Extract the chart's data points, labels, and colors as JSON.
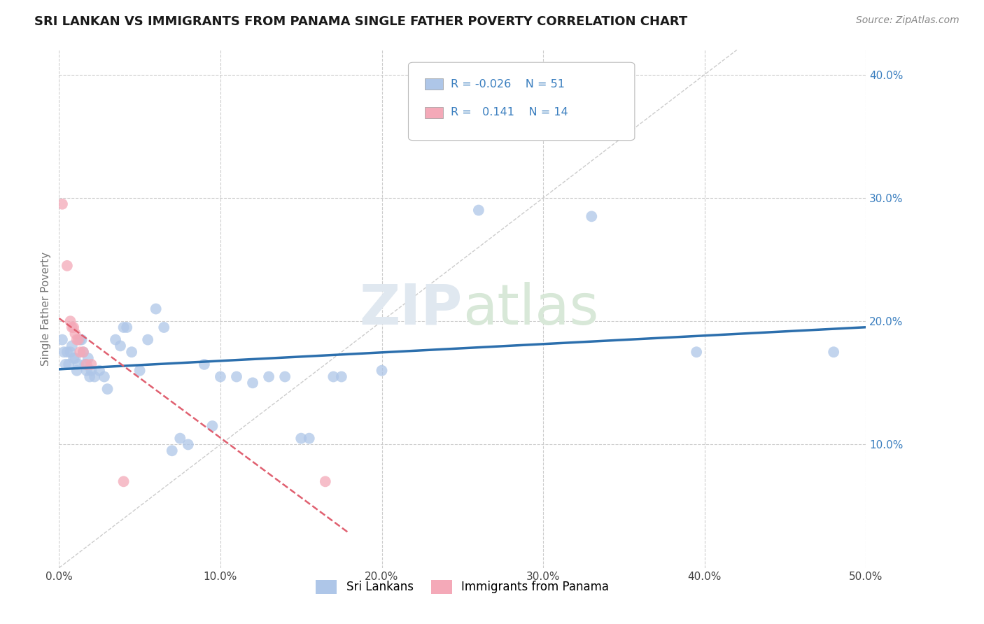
{
  "title": "SRI LANKAN VS IMMIGRANTS FROM PANAMA SINGLE FATHER POVERTY CORRELATION CHART",
  "source": "Source: ZipAtlas.com",
  "ylabel": "Single Father Poverty",
  "watermark": "ZIPatlas",
  "xmin": 0.0,
  "xmax": 0.5,
  "ymin": 0.0,
  "ymax": 0.42,
  "xticks": [
    0.0,
    0.1,
    0.2,
    0.3,
    0.4,
    0.5
  ],
  "xtick_labels": [
    "0.0%",
    "10.0%",
    "20.0%",
    "30.0%",
    "40.0%",
    "50.0%"
  ],
  "yticks": [
    0.1,
    0.2,
    0.3,
    0.4
  ],
  "ytick_labels": [
    "10.0%",
    "20.0%",
    "30.0%",
    "40.0%"
  ],
  "sri_lanka_color": "#aec6e8",
  "panama_color": "#f4a9b8",
  "trend_sri_lanka_color": "#2c6fad",
  "trend_panama_color": "#e06070",
  "diagonal_color": "#cccccc",
  "sri_lanka_points": [
    [
      0.002,
      0.185
    ],
    [
      0.003,
      0.175
    ],
    [
      0.004,
      0.165
    ],
    [
      0.005,
      0.175
    ],
    [
      0.006,
      0.165
    ],
    [
      0.007,
      0.175
    ],
    [
      0.008,
      0.18
    ],
    [
      0.009,
      0.17
    ],
    [
      0.01,
      0.17
    ],
    [
      0.011,
      0.16
    ],
    [
      0.012,
      0.165
    ],
    [
      0.013,
      0.185
    ],
    [
      0.014,
      0.185
    ],
    [
      0.015,
      0.175
    ],
    [
      0.016,
      0.165
    ],
    [
      0.017,
      0.16
    ],
    [
      0.018,
      0.17
    ],
    [
      0.019,
      0.155
    ],
    [
      0.02,
      0.16
    ],
    [
      0.022,
      0.155
    ],
    [
      0.025,
      0.16
    ],
    [
      0.028,
      0.155
    ],
    [
      0.03,
      0.145
    ],
    [
      0.035,
      0.185
    ],
    [
      0.038,
      0.18
    ],
    [
      0.04,
      0.195
    ],
    [
      0.042,
      0.195
    ],
    [
      0.045,
      0.175
    ],
    [
      0.05,
      0.16
    ],
    [
      0.055,
      0.185
    ],
    [
      0.06,
      0.21
    ],
    [
      0.065,
      0.195
    ],
    [
      0.07,
      0.095
    ],
    [
      0.075,
      0.105
    ],
    [
      0.08,
      0.1
    ],
    [
      0.09,
      0.165
    ],
    [
      0.095,
      0.115
    ],
    [
      0.1,
      0.155
    ],
    [
      0.11,
      0.155
    ],
    [
      0.12,
      0.15
    ],
    [
      0.13,
      0.155
    ],
    [
      0.14,
      0.155
    ],
    [
      0.15,
      0.105
    ],
    [
      0.155,
      0.105
    ],
    [
      0.17,
      0.155
    ],
    [
      0.175,
      0.155
    ],
    [
      0.2,
      0.16
    ],
    [
      0.26,
      0.29
    ],
    [
      0.33,
      0.285
    ],
    [
      0.395,
      0.175
    ],
    [
      0.48,
      0.175
    ]
  ],
  "panama_points": [
    [
      0.002,
      0.295
    ],
    [
      0.005,
      0.245
    ],
    [
      0.007,
      0.2
    ],
    [
      0.008,
      0.195
    ],
    [
      0.009,
      0.195
    ],
    [
      0.01,
      0.19
    ],
    [
      0.011,
      0.185
    ],
    [
      0.012,
      0.185
    ],
    [
      0.013,
      0.175
    ],
    [
      0.015,
      0.175
    ],
    [
      0.017,
      0.165
    ],
    [
      0.02,
      0.165
    ],
    [
      0.04,
      0.07
    ],
    [
      0.165,
      0.07
    ]
  ],
  "trend_sri_lanka": [
    -0.026,
    0.168
  ],
  "trend_panama": [
    0.141,
    0.175
  ],
  "figsize": [
    14.06,
    8.92
  ],
  "dpi": 100
}
